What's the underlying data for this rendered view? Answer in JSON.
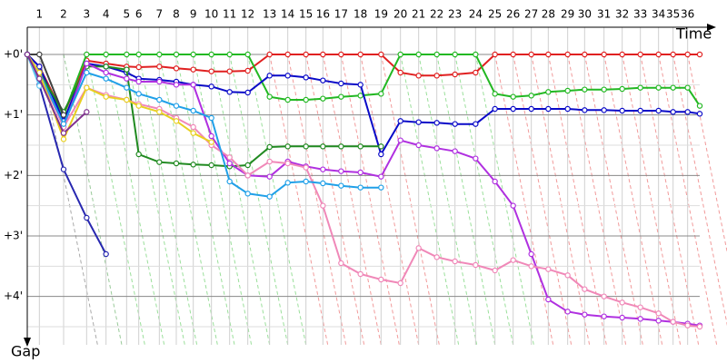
{
  "chart_data": {
    "type": "line",
    "x_label": "Time",
    "y_label": "Gap",
    "x_tick_labels": [
      null,
      "1",
      "2",
      "3",
      "4",
      "5",
      "6",
      "7",
      "8",
      "9",
      "10",
      "11",
      "12",
      "13",
      "14",
      "15",
      "16",
      "17",
      "18",
      "19",
      "20",
      "21",
      "22",
      "23",
      "24",
      "25",
      "26",
      "27",
      "28",
      "29",
      "30",
      "31",
      "32",
      "33",
      "34",
      "35",
      "36",
      null
    ],
    "x": [
      0,
      1.0,
      3.0,
      4.9,
      6.5,
      8.2,
      9.2,
      10.9,
      12.3,
      13.7,
      15.2,
      16.7,
      18.2,
      20.0,
      21.5,
      23.0,
      24.4,
      25.9,
      27.5,
      29.2,
      30.8,
      32.3,
      33.8,
      35.3,
      37.0,
      38.6,
      40.1,
      41.6,
      43.0,
      44.6,
      46.0,
      47.6,
      49.1,
      50.6,
      52.1,
      53.3,
      54.5,
      55.5
    ],
    "xlim": [
      0,
      57
    ],
    "ylim": [
      -0.45,
      4.8
    ],
    "yticks": [
      {
        "value": 0,
        "label": "+0'"
      },
      {
        "value": 1,
        "label": "+1'"
      },
      {
        "value": 2,
        "label": "+2'"
      },
      {
        "value": 3,
        "label": "+3'"
      },
      {
        "value": 4,
        "label": "+4'"
      }
    ],
    "grid": true,
    "y_inverted": true,
    "series": [
      {
        "color": "#e02020",
        "values": [
          0,
          0.2,
          1.0,
          0.1,
          0.15,
          0.2,
          0.21,
          0.2,
          0.23,
          0.25,
          0.28,
          0.28,
          0.27,
          0,
          0,
          0,
          0,
          0,
          0,
          0,
          0.3,
          0.35,
          0.35,
          0.33,
          0.3,
          0,
          0,
          0,
          0,
          0,
          0,
          0,
          0,
          0,
          0,
          0,
          0,
          0
        ]
      },
      {
        "color": "#22b822",
        "values": [
          0,
          0.3,
          1.0,
          0,
          0,
          0,
          0,
          0,
          0,
          0,
          0,
          0,
          0,
          0.7,
          0.75,
          0.75,
          0.73,
          0.7,
          0.68,
          0.65,
          0,
          0,
          0,
          0,
          0,
          0.65,
          0.7,
          0.68,
          0.62,
          0.6,
          0.58,
          0.58,
          0.57,
          0.55,
          0.55,
          0.55,
          0.55,
          0.85
        ]
      },
      {
        "color": "#0a0ac8",
        "values": [
          0,
          0.2,
          1.1,
          0.15,
          0.2,
          0.3,
          0.4,
          0.42,
          0.45,
          0.5,
          0.53,
          0.62,
          0.63,
          0.35,
          0.35,
          0.38,
          0.43,
          0.48,
          0.5,
          1.65,
          1.1,
          1.12,
          1.13,
          1.15,
          1.15,
          0.9,
          0.9,
          0.9,
          0.9,
          0.9,
          0.92,
          0.92,
          0.93,
          0.93,
          0.93,
          0.95,
          0.95,
          0.98
        ]
      },
      {
        "color": "#208a20",
        "values": [
          0,
          0.3,
          0.95,
          0.2,
          0.2,
          0.25,
          1.65,
          1.78,
          1.8,
          1.82,
          1.83,
          1.85,
          1.83,
          1.53,
          1.52,
          1.52,
          1.52,
          1.52,
          1.52,
          1.52,
          null,
          null,
          null,
          null,
          null,
          null,
          null,
          null,
          null,
          null,
          null,
          null,
          null,
          null,
          null,
          null,
          null,
          null
        ]
      },
      {
        "color": "#b030e0",
        "values": [
          0,
          0.3,
          1.2,
          0.15,
          0.3,
          0.4,
          0.45,
          0.45,
          0.5,
          0.5,
          1.35,
          1.8,
          2.0,
          2.02,
          1.77,
          1.85,
          1.9,
          1.93,
          1.95,
          2.02,
          1.42,
          1.5,
          1.55,
          1.6,
          1.72,
          2.1,
          2.5,
          3.3,
          4.05,
          4.25,
          4.3,
          4.33,
          4.35,
          4.37,
          4.4,
          4.42,
          4.45,
          4.48
        ]
      },
      {
        "color": "#f088b8",
        "values": [
          0,
          0.3,
          1.2,
          0.55,
          0.67,
          0.75,
          0.82,
          0.9,
          1.05,
          1.2,
          1.5,
          1.7,
          2.0,
          1.77,
          1.8,
          1.87,
          2.5,
          3.45,
          3.63,
          3.72,
          3.78,
          3.2,
          3.35,
          3.42,
          3.48,
          3.57,
          3.4,
          3.5,
          3.55,
          3.65,
          3.88,
          4.0,
          4.1,
          4.18,
          4.28,
          4.42,
          4.48,
          4.5
        ]
      },
      {
        "color": "#20a0e8",
        "values": [
          0,
          0.3,
          1.15,
          0.3,
          0.4,
          0.55,
          0.65,
          0.75,
          0.85,
          0.93,
          1.05,
          2.1,
          2.3,
          2.35,
          2.12,
          2.1,
          2.13,
          2.17,
          2.2,
          2.2,
          null,
          null,
          null,
          null,
          null,
          null,
          null,
          null,
          null,
          null,
          null,
          null,
          null,
          null,
          null,
          null,
          null,
          null
        ]
      },
      {
        "color": "#e8d020",
        "values": [
          0,
          0.3,
          1.4,
          0.55,
          0.7,
          0.75,
          0.85,
          0.95,
          1.1,
          1.3,
          1.45,
          null,
          null,
          null,
          null,
          null,
          null,
          null,
          null,
          null,
          null,
          null,
          null,
          null,
          null,
          null,
          null,
          null,
          null,
          null,
          null,
          null,
          null,
          null,
          null,
          null,
          null,
          null
        ]
      },
      {
        "color": "#2828b0",
        "values": [
          0,
          0.5,
          1.9,
          2.7,
          3.3,
          null,
          null,
          null,
          null,
          null,
          null,
          null,
          null,
          null,
          null,
          null,
          null,
          null,
          null,
          null,
          null,
          null,
          null,
          null,
          null,
          null,
          null,
          null,
          null,
          null,
          null,
          null,
          null,
          null,
          null,
          null,
          null,
          null
        ]
      },
      {
        "color": "#404040",
        "values": [
          0,
          0,
          1.0,
          null,
          null,
          null,
          null,
          null,
          null,
          null,
          null,
          null,
          null,
          null,
          null,
          null,
          null,
          null,
          null,
          null,
          null,
          null,
          null,
          null,
          null,
          null,
          null,
          null,
          null,
          null,
          null,
          null,
          null,
          null,
          null,
          null,
          null,
          null
        ]
      },
      {
        "color": "#60c8f0",
        "values": [
          0,
          0.52,
          null,
          null,
          null,
          null,
          null,
          null,
          null,
          null,
          null,
          null,
          null,
          null,
          null,
          null,
          null,
          null,
          null,
          null,
          null,
          null,
          null,
          null,
          null,
          null,
          null,
          null,
          null,
          null,
          null,
          null,
          null,
          null,
          null,
          null,
          null,
          null
        ]
      },
      {
        "color": "#803090",
        "values": [
          0,
          0.4,
          1.3,
          0.95,
          null,
          null,
          null,
          null,
          null,
          null,
          null,
          null,
          null,
          null,
          null,
          null,
          null,
          null,
          null,
          null,
          null,
          null,
          null,
          null,
          null,
          null,
          null,
          null,
          null,
          null,
          null,
          null,
          null,
          null,
          null,
          null,
          null,
          null
        ]
      }
    ]
  }
}
